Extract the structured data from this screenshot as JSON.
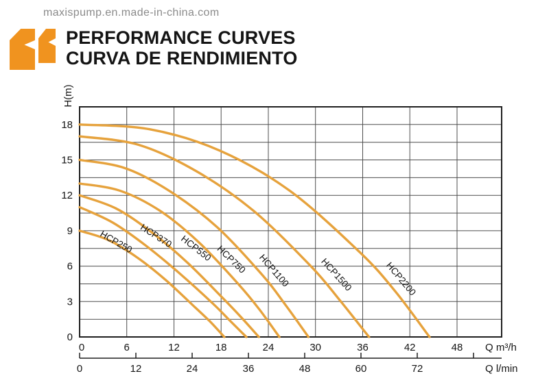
{
  "page": {
    "watermark": "maxispump.en.made-in-china.com",
    "title_line1": "PERFORMANCE CURVES",
    "title_line2": "CURVA DE RENDIMIENTO",
    "icon": "orange-opening-quote-marks",
    "colors": {
      "curve_orange": "#E6A23C",
      "icon_orange": "#F0931F",
      "grid_gray": "#4d4d4d",
      "border_black": "#1f1f1f",
      "text_black": "#141414",
      "watermark_gray": "#8a8a8a"
    }
  },
  "chart_data": {
    "type": "line",
    "title": "PERFORMANCE CURVES / CURVA DE RENDIMIENTO",
    "x_axis_primary": {
      "label": "Q m³/h",
      "ticks": [
        0,
        6,
        12,
        18,
        24,
        30,
        36,
        42,
        48
      ],
      "range": [
        0,
        53.7
      ],
      "grid_step": 6
    },
    "x_axis_secondary": {
      "label": "Q l/min",
      "ticks": [
        0,
        12,
        24,
        36,
        48,
        60,
        72
      ],
      "unlabeled_tick": 84,
      "range": [
        0,
        90
      ]
    },
    "y_axis": {
      "label": "H(m)",
      "ticks": [
        0,
        3,
        6,
        9,
        12,
        15,
        18
      ],
      "range": [
        0,
        19.5
      ],
      "grid_step": 1.5
    },
    "grid": true,
    "legend_position": "labels-on-curves",
    "series": [
      {
        "name": "HCP250",
        "points": [
          [
            0,
            9
          ],
          [
            3.7,
            8.2
          ],
          [
            7.4,
            6.7
          ],
          [
            11,
            4.8
          ],
          [
            14.7,
            2.5
          ],
          [
            16.6,
            1.3
          ],
          [
            18.4,
            0
          ]
        ]
      },
      {
        "name": "HCP370",
        "points": [
          [
            0,
            11
          ],
          [
            4.2,
            9.7
          ],
          [
            8.5,
            7.7
          ],
          [
            12.7,
            5.4
          ],
          [
            17,
            2.8
          ],
          [
            19.1,
            1.4
          ],
          [
            21.2,
            0
          ]
        ]
      },
      {
        "name": "HCP550",
        "points": [
          [
            0,
            12
          ],
          [
            4.6,
            10.9
          ],
          [
            9.1,
            8.9
          ],
          [
            13.7,
            6.3
          ],
          [
            18.2,
            3.3
          ],
          [
            20.5,
            1.7
          ],
          [
            22.8,
            0
          ]
        ]
      },
      {
        "name": "HCP750",
        "points": [
          [
            0,
            13
          ],
          [
            5.1,
            12.4
          ],
          [
            10.2,
            10.7
          ],
          [
            15.2,
            8
          ],
          [
            20.3,
            4.4
          ],
          [
            22.9,
            2.3
          ],
          [
            25.4,
            0
          ]
        ]
      },
      {
        "name": "HCP1100",
        "points": [
          [
            0,
            15
          ],
          [
            5.8,
            14.3
          ],
          [
            11.6,
            12.3
          ],
          [
            17.5,
            9.3
          ],
          [
            23.3,
            5.2
          ],
          [
            26.2,
            2.7
          ],
          [
            29.1,
            0
          ]
        ]
      },
      {
        "name": "HCP1500",
        "points": [
          [
            0,
            17
          ],
          [
            7.4,
            16.3
          ],
          [
            14.7,
            14.1
          ],
          [
            22.1,
            10.7
          ],
          [
            29.4,
            6
          ],
          [
            33.1,
            3.1
          ],
          [
            36.8,
            0
          ]
        ]
      },
      {
        "name": "HCP2200",
        "points": [
          [
            0,
            18
          ],
          [
            8.9,
            17.6
          ],
          [
            17.8,
            15.8
          ],
          [
            26.7,
            12.4
          ],
          [
            35.6,
            7.2
          ],
          [
            40.1,
            3.9
          ],
          [
            44.5,
            0
          ]
        ]
      }
    ]
  }
}
